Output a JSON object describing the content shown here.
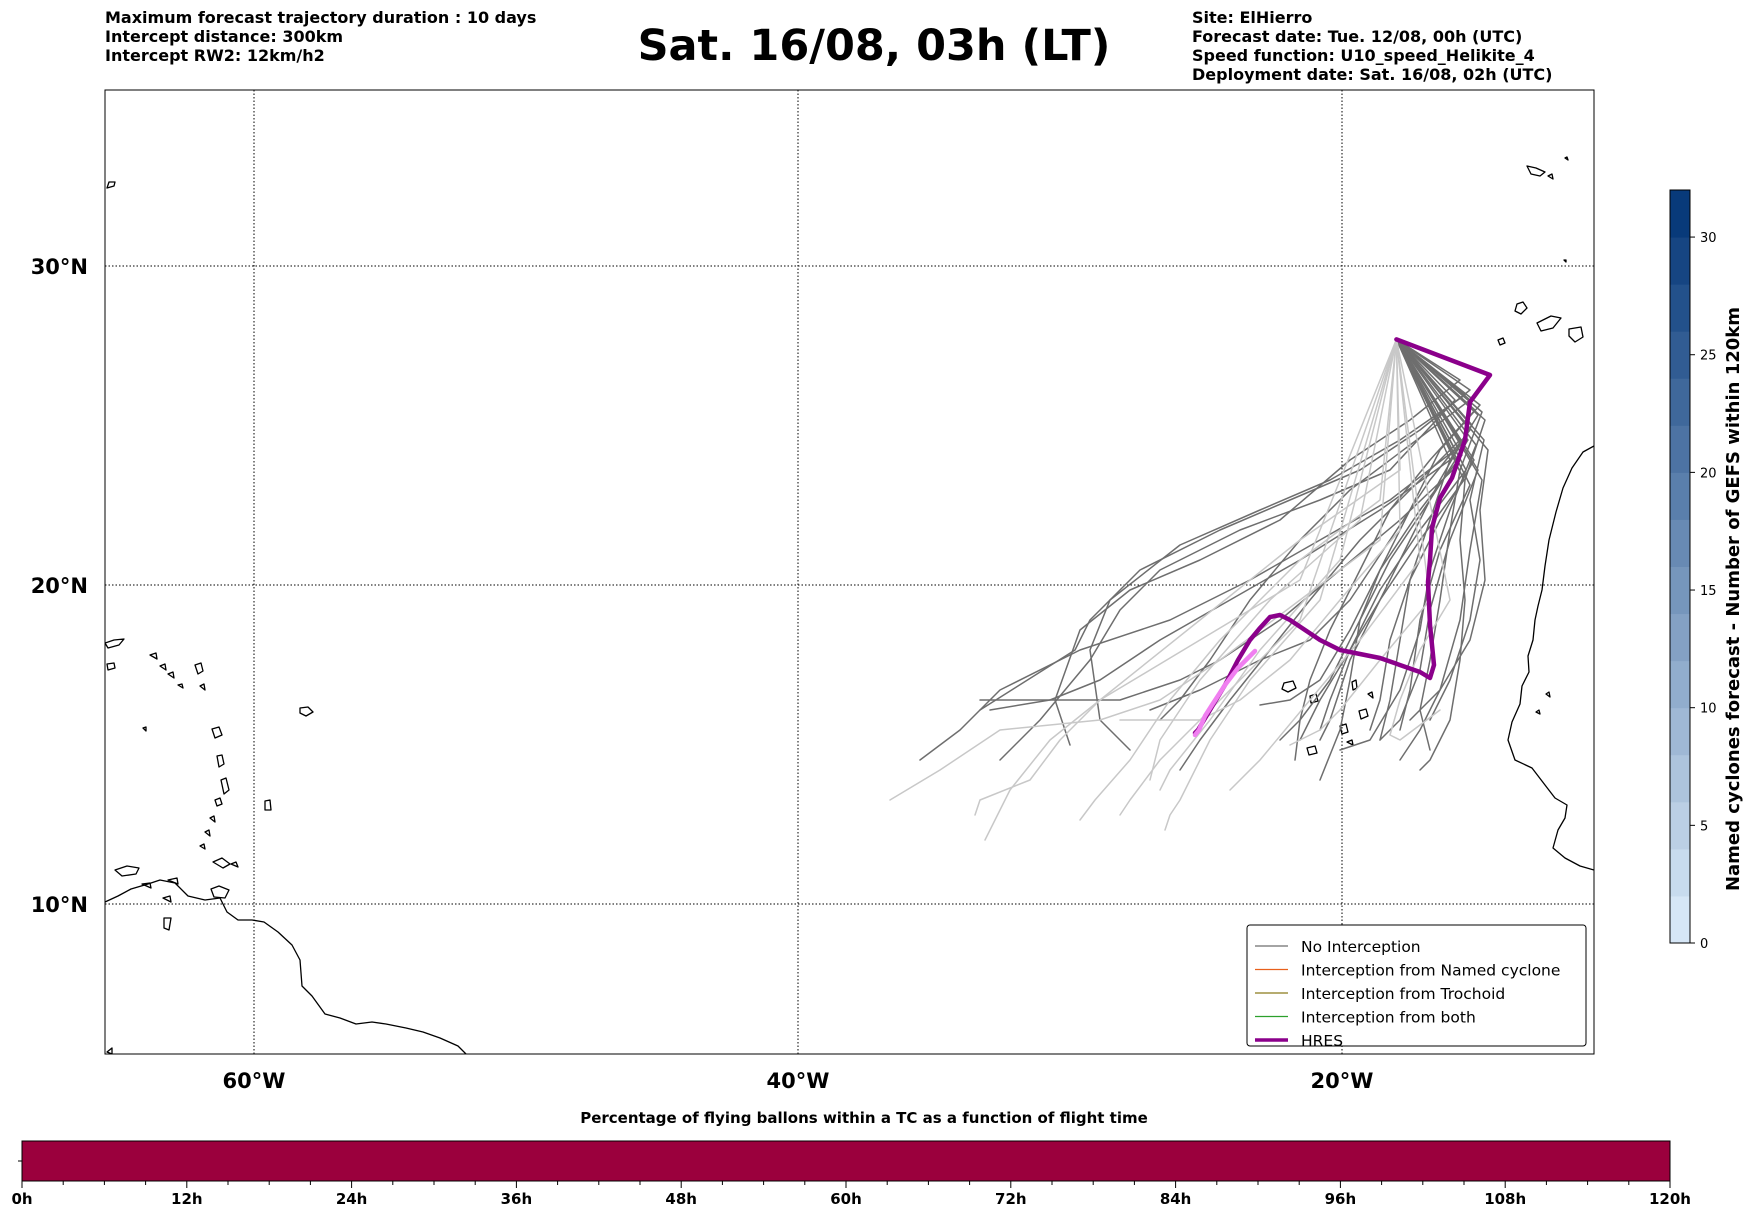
{
  "header": {
    "left_lines": [
      "Maximum forecast trajectory duration : 10 days",
      "Intercept distance: 300km",
      "Intercept RW2: 12km/h2"
    ],
    "title": "Sat. 16/08, 03h (LT)",
    "right_lines": [
      "Site: ElHierro",
      "Forecast date: Tue. 12/08, 00h (UTC)",
      "Speed function: U10_speed_Helikite_4",
      "Deployment date: Sat. 16/08, 02h (UTC)"
    ]
  },
  "map": {
    "lon_range": [
      -65,
      15
    ],
    "lat_range": [
      5,
      35
    ],
    "lon_ticks": [
      {
        "value": -60,
        "label": "60°W"
      },
      {
        "value": -40,
        "label": "40°W"
      },
      {
        "value": -20,
        "label": "20°W"
      }
    ],
    "lat_ticks": [
      {
        "value": 10,
        "label": "10°N"
      },
      {
        "value": 20,
        "label": "20°N"
      },
      {
        "value": 30,
        "label": "30°N"
      }
    ],
    "grid": true,
    "site": {
      "name": "ElHierro",
      "lon": -18.0,
      "lat": 27.7
    },
    "colors": {
      "no_interception": "#6e6e6e",
      "no_interception_faded": "#c8c8c8",
      "named_cyclone": "#e8601c",
      "trochoid": "#8b7a1a",
      "both": "#2ca02c",
      "hres": "#8b008b",
      "hres_highlight": "#f07ff0",
      "coast": "#000000"
    }
  },
  "legend": {
    "placement": "lower-right",
    "items": [
      {
        "label": "No Interception",
        "color": "#6e6e6e",
        "width": 1.2
      },
      {
        "label": "Interception from Named cyclone",
        "color": "#e8601c",
        "width": 1.2
      },
      {
        "label": "Interception from Trochoid",
        "color": "#8b7a1a",
        "width": 1.2
      },
      {
        "label": "Interception from both",
        "color": "#2ca02c",
        "width": 1.2
      },
      {
        "label": "HRES",
        "color": "#8b008b",
        "width": 3.5
      }
    ]
  },
  "colorbar": {
    "label": "Named cyclones forecast - Number of GEFS within 120km",
    "min": 0,
    "max": 32,
    "step": 2,
    "ticks": [
      0,
      5,
      10,
      15,
      20,
      25,
      30
    ],
    "color_low": "#d6e6f6",
    "color_high": "#083a7a"
  },
  "bottom_bar": {
    "title": "Percentage of flying ballons within a TC as a function of flight time",
    "color": "#9b003d",
    "ticks": [
      "0h",
      "12h",
      "24h",
      "36h",
      "48h",
      "60h",
      "72h",
      "84h",
      "96h",
      "108h",
      "120h"
    ],
    "minor_per_major": 4
  }
}
